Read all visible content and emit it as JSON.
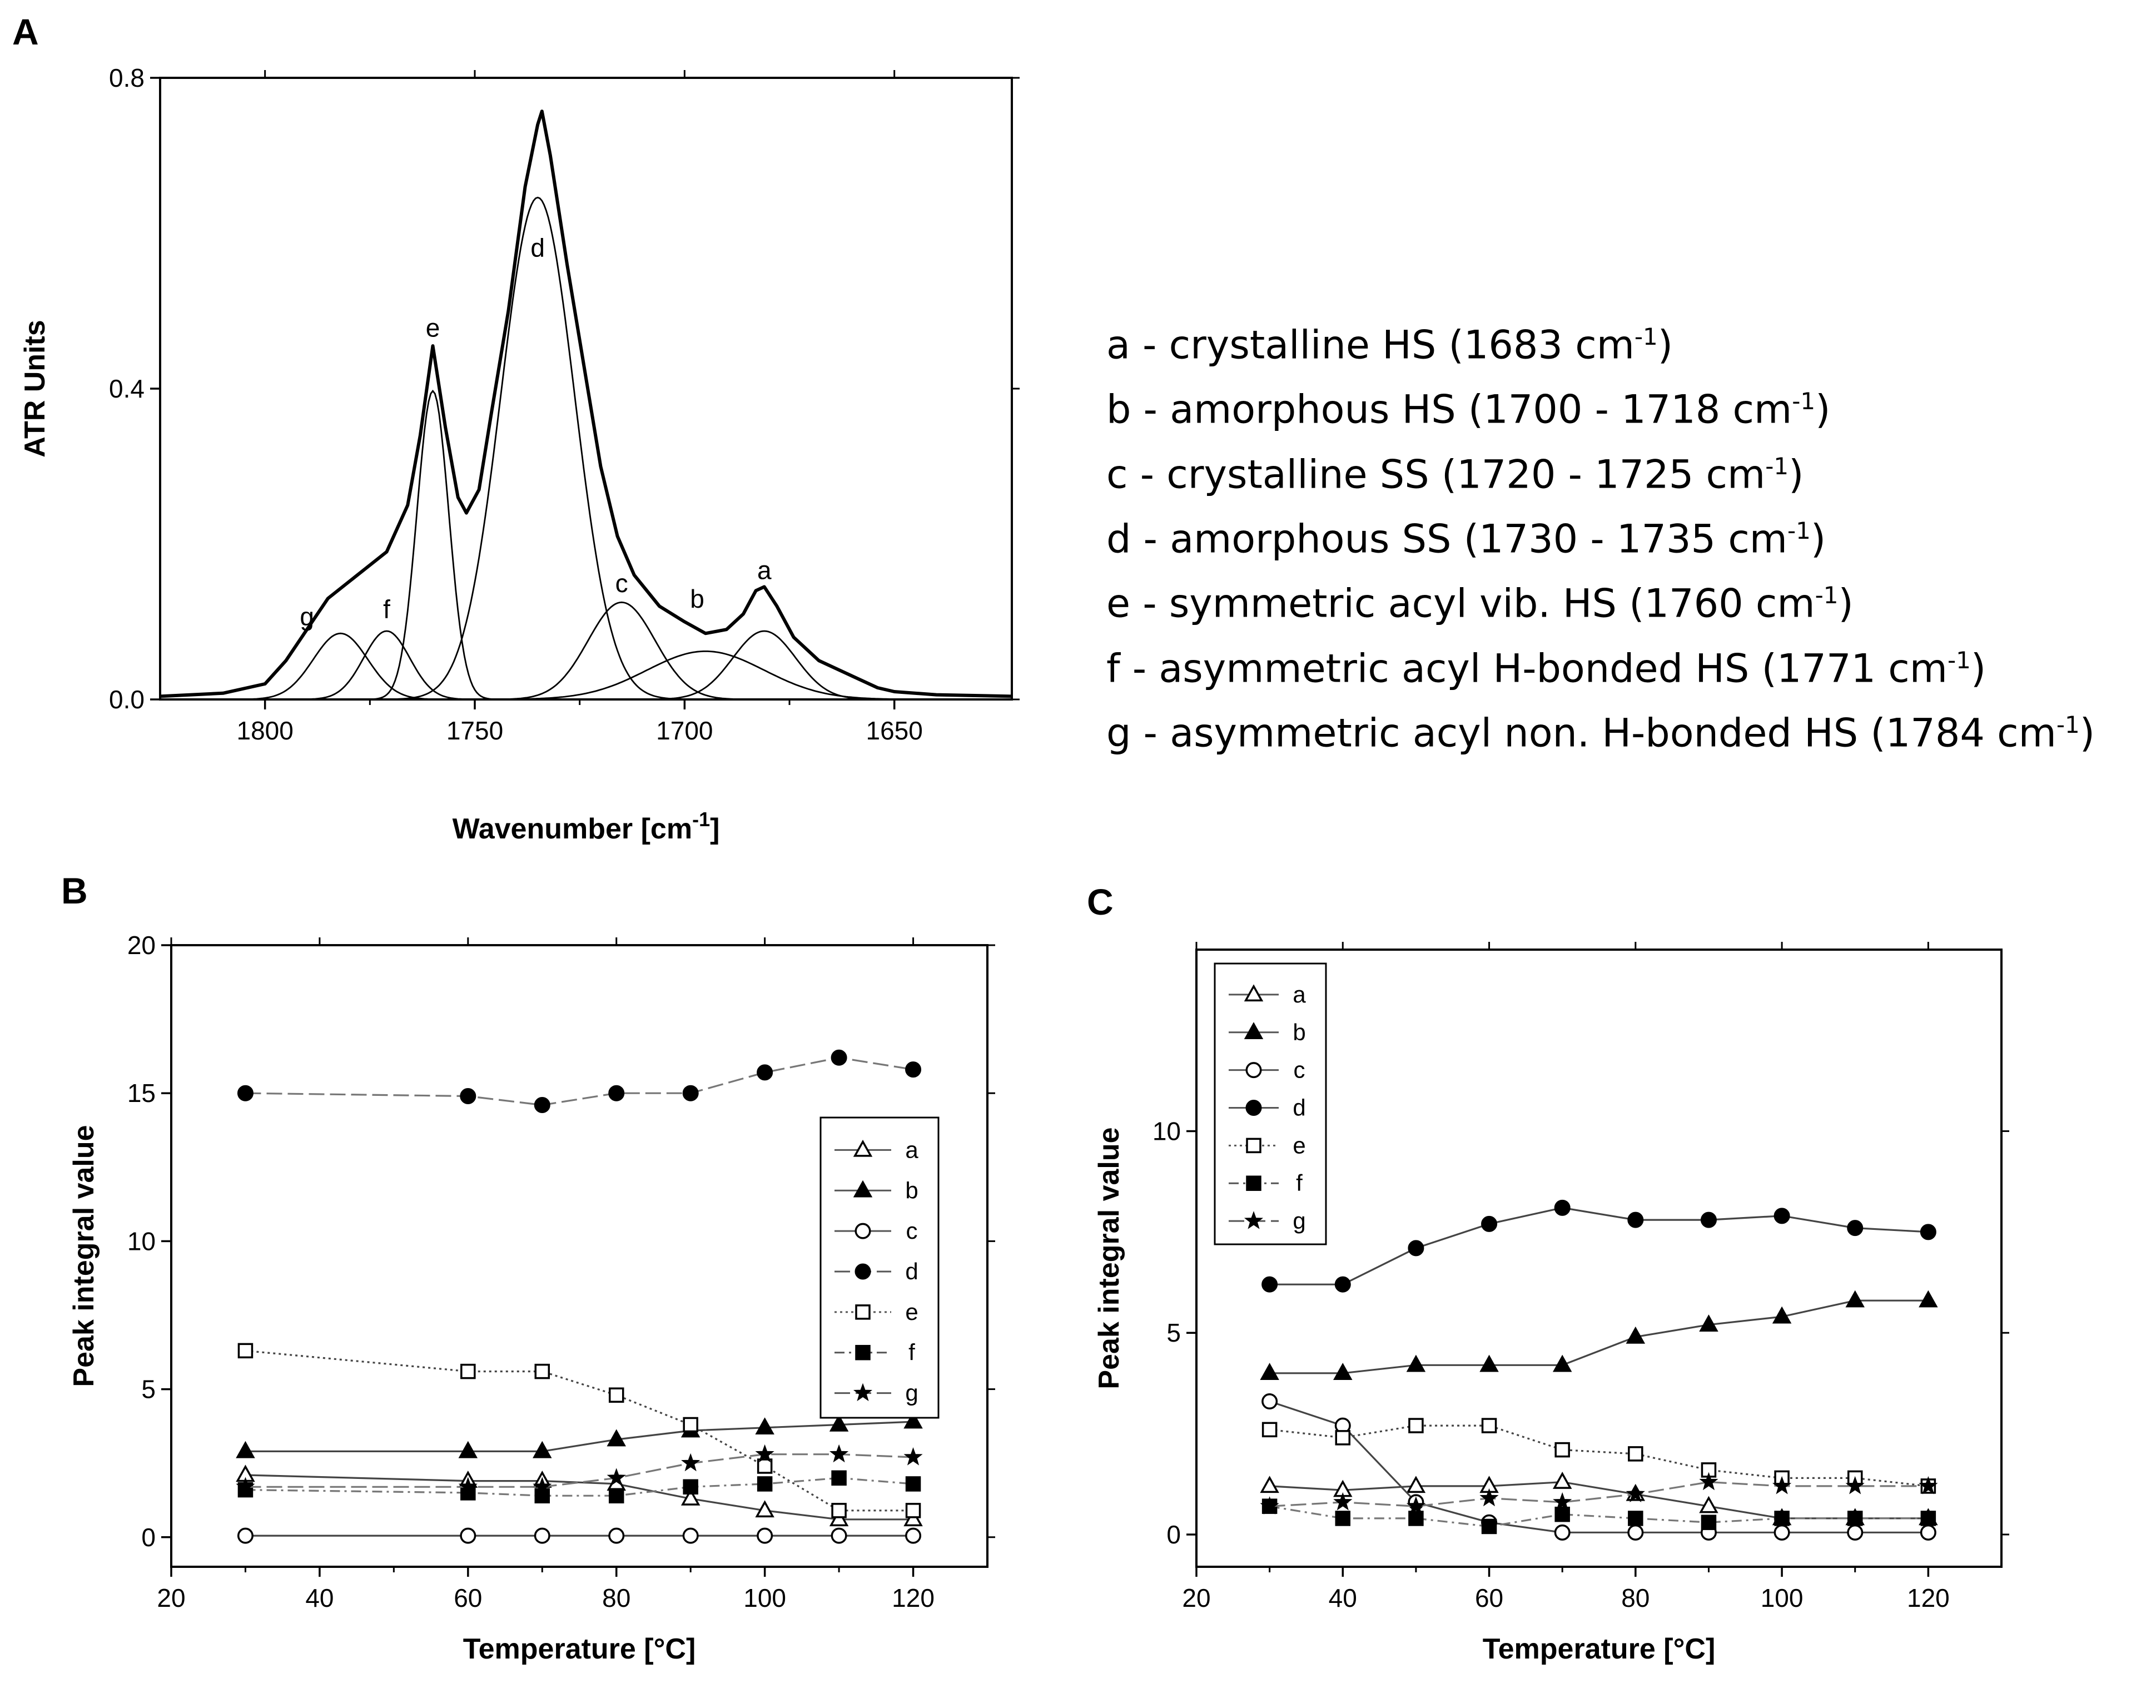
{
  "panels": {
    "A": "A",
    "B": "B",
    "C": "C"
  },
  "chart_data": [
    {
      "id": "A",
      "type": "line",
      "title": "",
      "xlabel": "Wavenumber [cm",
      "xlabel_sup": "-1",
      "xlabel_tail": "]",
      "ylabel": "ATR Units",
      "xlim": [
        1825,
        1622
      ],
      "ylim": [
        0,
        0.8
      ],
      "x_ticks": [
        1800,
        1750,
        1700,
        1650
      ],
      "x_tick_labels": [
        "1800",
        "1750",
        "1700",
        "1650"
      ],
      "y_ticks": [
        0,
        0.4,
        0.8
      ],
      "y_tick_labels": [
        "0.0",
        "0.4",
        "0.8"
      ],
      "components": [
        {
          "label": "a",
          "center": 1681,
          "height": 0.088,
          "width": 7.5
        },
        {
          "label": "b",
          "center": 1695,
          "height": 0.062,
          "width": 14
        },
        {
          "label": "c",
          "center": 1715,
          "height": 0.125,
          "width": 8
        },
        {
          "label": "d",
          "center": 1735,
          "height": 0.646,
          "width": 8.8
        },
        {
          "label": "e",
          "center": 1760,
          "height": 0.397,
          "width": 3.8
        },
        {
          "label": "f",
          "center": 1771,
          "height": 0.088,
          "width": 5.5
        },
        {
          "label": "g",
          "center": 1782,
          "height": 0.085,
          "width": 6.5
        }
      ],
      "envelope_points": [
        [
          1825,
          0.004
        ],
        [
          1810,
          0.008
        ],
        [
          1800,
          0.02
        ],
        [
          1795,
          0.05
        ],
        [
          1790,
          0.09
        ],
        [
          1785,
          0.13
        ],
        [
          1778,
          0.16
        ],
        [
          1771,
          0.19
        ],
        [
          1766,
          0.25
        ],
        [
          1763,
          0.34
        ],
        [
          1760,
          0.455
        ],
        [
          1757,
          0.35
        ],
        [
          1754,
          0.26
        ],
        [
          1752,
          0.24
        ],
        [
          1749,
          0.27
        ],
        [
          1746,
          0.37
        ],
        [
          1742,
          0.5
        ],
        [
          1738,
          0.66
        ],
        [
          1735,
          0.74
        ],
        [
          1734,
          0.757
        ],
        [
          1732,
          0.7
        ],
        [
          1728,
          0.56
        ],
        [
          1724,
          0.43
        ],
        [
          1720,
          0.3
        ],
        [
          1716,
          0.21
        ],
        [
          1712,
          0.16
        ],
        [
          1706,
          0.12
        ],
        [
          1700,
          0.1
        ],
        [
          1695,
          0.085
        ],
        [
          1690,
          0.09
        ],
        [
          1686,
          0.11
        ],
        [
          1683,
          0.14
        ],
        [
          1681,
          0.145
        ],
        [
          1678,
          0.12
        ],
        [
          1674,
          0.08
        ],
        [
          1668,
          0.05
        ],
        [
          1660,
          0.03
        ],
        [
          1654,
          0.015
        ],
        [
          1650,
          0.01
        ],
        [
          1640,
          0.006
        ],
        [
          1622,
          0.004
        ]
      ],
      "peak_labels": [
        {
          "text": "a",
          "x": 1681,
          "y": 0.155
        },
        {
          "text": "b",
          "x": 1697,
          "y": 0.118
        },
        {
          "text": "c",
          "x": 1715,
          "y": 0.138
        },
        {
          "text": "d",
          "x": 1735,
          "y": 0.57
        },
        {
          "text": "e",
          "x": 1760,
          "y": 0.467
        },
        {
          "text": "f",
          "x": 1771,
          "y": 0.105
        },
        {
          "text": "g",
          "x": 1790,
          "y": 0.095
        }
      ],
      "legend": [
        {
          "text": "a - crystalline HS (1683 cm",
          "sup": "-1",
          "tail": ")"
        },
        {
          "text": "b - amorphous HS (1700 - 1718 cm",
          "sup": "-1",
          "tail": ")"
        },
        {
          "text": "c - crystalline SS (1720 - 1725 cm",
          "sup": "-1",
          "tail": ")"
        },
        {
          "text": "d - amorphous SS (1730 - 1735 cm",
          "sup": "-1",
          "tail": ")"
        },
        {
          "text": "e - symmetric acyl vib. HS (1760 cm",
          "sup": "-1",
          "tail": ")"
        },
        {
          "text": "f -  asymmetric acyl H-bonded HS (1771 cm",
          "sup": "-1",
          "tail": ")"
        },
        {
          "text": "g - asymmetric acyl non. H-bonded HS (1784 cm",
          "sup": "-1",
          "tail": ")"
        }
      ]
    },
    {
      "id": "B",
      "type": "line",
      "title": "",
      "xlabel": "Temperature [°C]",
      "ylabel": "Peak integral value",
      "xlim": [
        20,
        130
      ],
      "ylim": [
        -1,
        20
      ],
      "x_ticks": [
        20,
        40,
        60,
        80,
        100,
        120
      ],
      "x_tick_labels": [
        "20",
        "40",
        "60",
        "80",
        "100",
        "120"
      ],
      "y_ticks": [
        0,
        5,
        10,
        15,
        20
      ],
      "y_tick_labels": [
        "0",
        "5",
        "10",
        "15",
        "20"
      ],
      "x": [
        30,
        60,
        70,
        80,
        90,
        100,
        110,
        120
      ],
      "series": [
        {
          "name": "a",
          "marker": "triangle-open",
          "dash": "solid",
          "values": [
            2.1,
            1.9,
            1.9,
            1.8,
            1.3,
            0.9,
            0.6,
            0.6
          ]
        },
        {
          "name": "b",
          "marker": "triangle-filled",
          "dash": "solid",
          "values": [
            2.9,
            2.9,
            2.9,
            3.3,
            3.6,
            3.7,
            3.8,
            3.9
          ]
        },
        {
          "name": "c",
          "marker": "circle-open",
          "dash": "solid",
          "values": [
            0.05,
            0.05,
            0.05,
            0.05,
            0.05,
            0.05,
            0.05,
            0.05
          ]
        },
        {
          "name": "d",
          "marker": "circle-filled",
          "dash": "longdash",
          "values": [
            15.0,
            14.9,
            14.6,
            15.0,
            15.0,
            15.7,
            16.2,
            15.8
          ]
        },
        {
          "name": "e",
          "marker": "square-open",
          "dash": "dotted",
          "values": [
            6.3,
            5.6,
            5.6,
            4.8,
            3.8,
            2.4,
            0.9,
            0.9
          ]
        },
        {
          "name": "f",
          "marker": "square-filled",
          "dash": "dashdot",
          "values": [
            1.6,
            1.5,
            1.4,
            1.4,
            1.7,
            1.8,
            2.0,
            1.8
          ]
        },
        {
          "name": "g",
          "marker": "star",
          "dash": "longdash",
          "values": [
            1.7,
            1.7,
            1.7,
            2.0,
            2.5,
            2.8,
            2.8,
            2.7
          ]
        }
      ],
      "legend_position": "right"
    },
    {
      "id": "C",
      "type": "line",
      "title": "",
      "xlabel": "Temperature [°C]",
      "ylabel": "Peak integral value",
      "xlim": [
        20,
        130
      ],
      "ylim": [
        -0.8,
        14.5
      ],
      "x_ticks": [
        20,
        40,
        60,
        80,
        100,
        120
      ],
      "x_tick_labels": [
        "20",
        "40",
        "60",
        "80",
        "100",
        "120"
      ],
      "y_ticks": [
        0,
        5,
        10
      ],
      "y_tick_labels": [
        "0",
        "5",
        "10"
      ],
      "x": [
        30,
        40,
        50,
        60,
        70,
        80,
        90,
        100,
        110,
        120
      ],
      "series": [
        {
          "name": "a",
          "marker": "triangle-open",
          "dash": "solid",
          "values": [
            1.2,
            1.1,
            1.2,
            1.2,
            1.3,
            1.0,
            0.7,
            0.4,
            0.4,
            0.4
          ]
        },
        {
          "name": "b",
          "marker": "triangle-filled",
          "dash": "solid",
          "values": [
            4.0,
            4.0,
            4.2,
            4.2,
            4.2,
            4.9,
            5.2,
            5.4,
            5.8,
            5.8
          ]
        },
        {
          "name": "c",
          "marker": "circle-open",
          "dash": "solid",
          "values": [
            3.3,
            2.7,
            0.8,
            0.3,
            0.05,
            0.05,
            0.05,
            0.05,
            0.05,
            0.05
          ]
        },
        {
          "name": "d",
          "marker": "circle-filled",
          "dash": "solid",
          "values": [
            6.2,
            6.2,
            7.1,
            7.7,
            8.1,
            7.8,
            7.8,
            7.9,
            7.6,
            7.5
          ]
        },
        {
          "name": "e",
          "marker": "square-open",
          "dash": "dotted",
          "values": [
            2.6,
            2.4,
            2.7,
            2.7,
            2.1,
            2.0,
            1.6,
            1.4,
            1.4,
            1.2
          ]
        },
        {
          "name": "f",
          "marker": "square-filled",
          "dash": "dashdot",
          "values": [
            0.7,
            0.4,
            0.4,
            0.2,
            0.5,
            0.4,
            0.3,
            0.4,
            0.4,
            0.4
          ]
        },
        {
          "name": "g",
          "marker": "star",
          "dash": "longdash",
          "values": [
            0.7,
            0.8,
            0.7,
            0.9,
            0.8,
            1.0,
            1.3,
            1.2,
            1.2,
            1.2
          ]
        }
      ],
      "legend_position": "top-left"
    }
  ]
}
